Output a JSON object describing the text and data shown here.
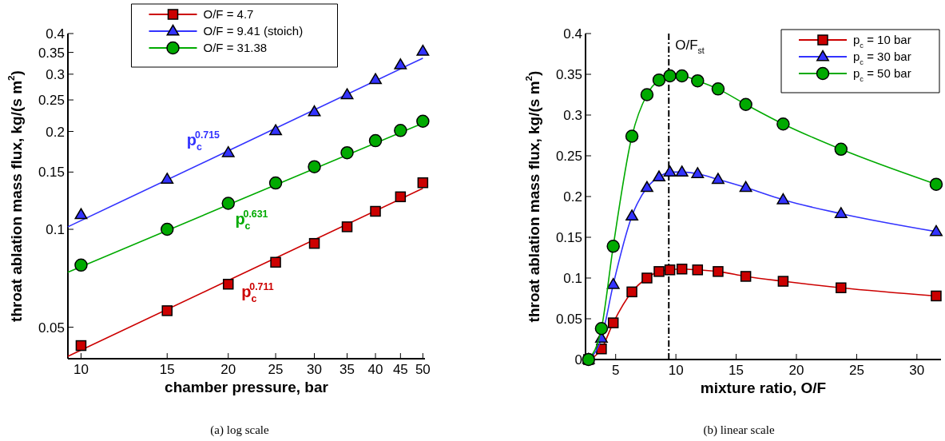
{
  "chart_data": [
    {
      "type": "scatter",
      "xlabel": "chamber pressure, bar",
      "ylabel": "throat ablation mass flux, kg/(s m$^{2}$)",
      "log": "xy",
      "xlim": [
        9.4,
        50.5
      ],
      "ylim": [
        0.04,
        0.4
      ],
      "xticks": [
        10,
        15,
        20,
        25,
        30,
        35,
        40,
        45,
        50
      ],
      "yticks": [
        0.05,
        0.1,
        0.15,
        0.2,
        0.25,
        0.3,
        0.35,
        0.4
      ],
      "legend": "top",
      "x": [
        10,
        15,
        20,
        25,
        30,
        35,
        40,
        45,
        50
      ],
      "series": [
        {
          "name": "O/F = 4.7",
          "marker": "square",
          "color": "#cc0000",
          "values": [
            0.0439,
            0.0562,
            0.0678,
            0.0792,
            0.0905,
            0.1018,
            0.1136,
            0.1259,
            0.1391
          ]
        },
        {
          "name": "O/F = 9.41 (stoich)",
          "marker": "triangle",
          "color": "#3333ff",
          "values": [
            0.1109,
            0.1425,
            0.172,
            0.2009,
            0.2297,
            0.2593,
            0.2886,
            0.3203,
            0.3527
          ]
        },
        {
          "name": "O/F = 31.38",
          "marker": "circle",
          "color": "#00aa00",
          "values": [
            0.0776,
            0.1,
            0.1202,
            0.1388,
            0.1558,
            0.172,
            0.1873,
            0.2013,
            0.215
          ]
        },
        {
          "type": "line",
          "marker": "none",
          "color": "#cc0000",
          "x": [
            9.4,
            20,
            50
          ],
          "values": [
            0.0407,
            0.0696,
            0.1336
          ]
        },
        {
          "type": "line",
          "marker": "none",
          "color": "#3333ff",
          "x": [
            9.4,
            20,
            50
          ],
          "values": [
            0.1018,
            0.1744,
            0.336
          ]
        },
        {
          "type": "line",
          "marker": "none",
          "color": "#00aa00",
          "x": [
            9.4,
            20,
            50
          ],
          "values": [
            0.0738,
            0.119,
            0.212
          ]
        }
      ],
      "annotations": [
        {
          "text": "p$_{c}$$^{0.715}$",
          "x": 19.5,
          "y": 0.1715
        },
        {
          "text": "p$_{c}$$^{0.631}$",
          "x": 20.2,
          "y": 0.1197
        },
        {
          "text": "p$_{c}$$^{0.711}$",
          "x": 20.8,
          "y": 0.0716
        },
        "(a)  log scale"
      ]
    },
    {
      "type": "line",
      "xlabel": "mixture ratio, O/F",
      "ylabel": "throat ablation mass flux, kg/(s m$^{2}$)",
      "xlim": [
        2.5,
        32
      ],
      "ylim": [
        0,
        0.4
      ],
      "xticks": [
        5,
        10,
        15,
        20,
        25,
        30
      ],
      "yticks": [
        0,
        0.05,
        0.1,
        0.15,
        0.2,
        0.25,
        0.3,
        0.35,
        0.4
      ],
      "legend": "top right",
      "x": [
        2.75,
        3.82,
        4.8,
        6.35,
        7.6,
        8.6,
        9.5,
        10.5,
        11.8,
        13.5,
        15.8,
        18.9,
        23.7,
        31.6
      ],
      "series": [
        {
          "name": "p$_{c}$ = 10 bar",
          "marker": "square",
          "color": "#cc0000",
          "values": [
            0,
            0.013,
            0.045,
            0.083,
            0.1,
            0.108,
            0.11,
            0.111,
            0.11,
            0.108,
            0.102,
            0.096,
            0.088,
            0.078
          ]
        },
        {
          "name": "p$_{c}$ = 30 bar",
          "marker": "triangle",
          "color": "#3333ff",
          "values": [
            0,
            0.026,
            0.092,
            0.176,
            0.211,
            0.224,
            0.23,
            0.23,
            0.228,
            0.221,
            0.211,
            0.196,
            0.179,
            0.157
          ]
        },
        {
          "name": "p$_{c}$ = 50 bar",
          "marker": "circle",
          "color": "#00aa00",
          "values": [
            0,
            0.038,
            0.139,
            0.274,
            0.325,
            0.343,
            0.348,
            0.348,
            0.342,
            0.332,
            0.313,
            0.289,
            0.258,
            0.215
          ]
        }
      ],
      "ref_lines": [
        {
          "axis": "x",
          "value": 9.41,
          "label": "O/F$_{st}$",
          "color": "#000000"
        }
      ],
      "annotations": [
        "(b)  linear scale"
      ]
    }
  ]
}
